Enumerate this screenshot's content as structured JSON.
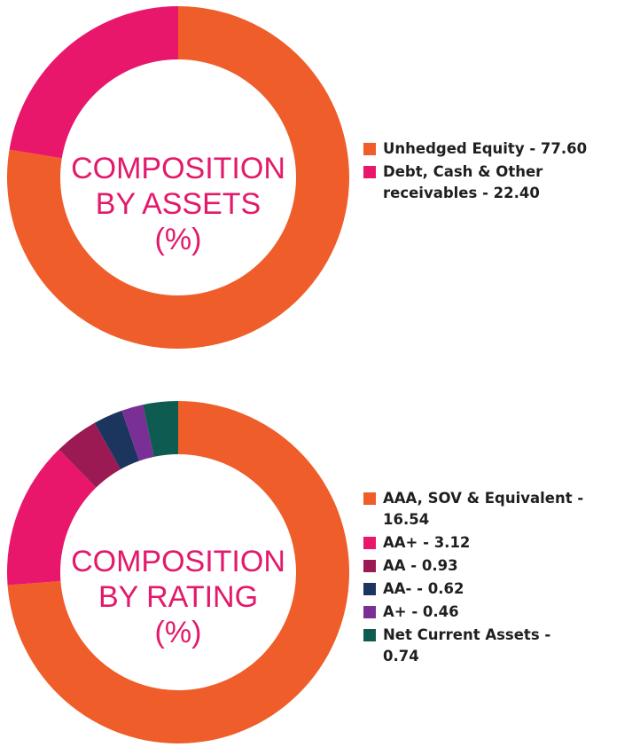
{
  "chart_data": [
    {
      "type": "pie",
      "title_lines": [
        "COMPOSITION",
        "BY ASSETS",
        "(%)"
      ],
      "series": [
        {
          "label": "Unhedged Equity - 77.60",
          "value": 77.6,
          "color": "#ef5d2a"
        },
        {
          "label": "Debt, Cash & Other receivables - 22.40",
          "value": 22.4,
          "color": "#e8176c"
        }
      ]
    },
    {
      "type": "pie",
      "title_lines": [
        "COMPOSITION",
        "BY RATING",
        "(%)"
      ],
      "series": [
        {
          "label": "AAA, SOV & Equivalent - 16.54",
          "value": 16.54,
          "color": "#ef5d2a"
        },
        {
          "label": "AA+ - 3.12",
          "value": 3.12,
          "color": "#e8176c"
        },
        {
          "label": "AA - 0.93",
          "value": 0.93,
          "color": "#9b1a54"
        },
        {
          "label": "AA- - 0.62",
          "value": 0.62,
          "color": "#1b355e"
        },
        {
          "label": "A+ - 0.46",
          "value": 0.46,
          "color": "#7a2f96"
        },
        {
          "label": "Net Current Assets - 0.74",
          "value": 0.74,
          "color": "#0e5b52"
        }
      ]
    }
  ]
}
